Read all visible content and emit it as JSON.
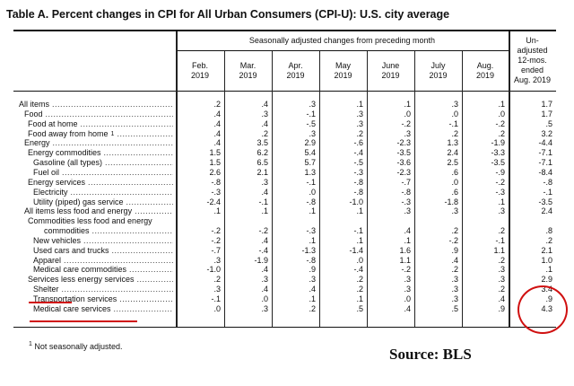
{
  "title": "Table A. Percent changes in CPI for All Urban Consumers (CPI-U): U.S. city average",
  "header": {
    "group_label": "Seasonally adjusted changes from preceding month",
    "months": [
      [
        "Feb.",
        "2019"
      ],
      [
        "Mar.",
        "2019"
      ],
      [
        "Apr.",
        "2019"
      ],
      [
        "May",
        "2019"
      ],
      [
        "June",
        "2019"
      ],
      [
        "July",
        "2019"
      ],
      [
        "Aug.",
        "2019"
      ]
    ],
    "unadjusted": [
      "Un-",
      "adjusted",
      "12-mos.",
      "ended",
      "Aug. 2019"
    ]
  },
  "rows": [
    {
      "label": "All items",
      "indent": 0,
      "values": [
        ".2",
        ".4",
        ".3",
        ".1",
        ".1",
        ".3",
        ".1",
        "1.7"
      ]
    },
    {
      "label": "Food",
      "indent": 1,
      "values": [
        ".4",
        ".3",
        "-.1",
        ".3",
        ".0",
        ".0",
        ".0",
        "1.7"
      ]
    },
    {
      "label": "Food at home",
      "indent": 2,
      "values": [
        ".4",
        ".4",
        "-.5",
        ".3",
        "-.2",
        "-.1",
        "-.2",
        ".5"
      ]
    },
    {
      "label": "Food away from home",
      "footnote": "1",
      "indent": 2,
      "values": [
        ".4",
        ".2",
        ".3",
        ".2",
        ".3",
        ".2",
        ".2",
        "3.2"
      ]
    },
    {
      "label": "Energy",
      "indent": 1,
      "values": [
        ".4",
        "3.5",
        "2.9",
        "-.6",
        "-2.3",
        "1.3",
        "-1.9",
        "-4.4"
      ]
    },
    {
      "label": "Energy commodities",
      "indent": 2,
      "values": [
        "1.5",
        "6.2",
        "5.4",
        "-.4",
        "-3.5",
        "2.4",
        "-3.3",
        "-7.1"
      ]
    },
    {
      "label": "Gasoline (all types)",
      "indent": 3,
      "values": [
        "1.5",
        "6.5",
        "5.7",
        "-.5",
        "-3.6",
        "2.5",
        "-3.5",
        "-7.1"
      ]
    },
    {
      "label": "Fuel oil",
      "indent": 3,
      "values": [
        "2.6",
        "2.1",
        "1.3",
        "-.3",
        "-2.3",
        ".6",
        "-.9",
        "-8.4"
      ]
    },
    {
      "label": "Energy services",
      "indent": 2,
      "values": [
        "-.8",
        ".3",
        "-.1",
        "-.8",
        "-.7",
        ".0",
        "-.2",
        "-.8"
      ]
    },
    {
      "label": "Electricity",
      "indent": 3,
      "values": [
        "-.3",
        ".4",
        ".0",
        "-.8",
        "-.8",
        ".6",
        "-.3",
        "-.1"
      ]
    },
    {
      "label": "Utility (piped) gas service",
      "indent": 3,
      "values": [
        "-2.4",
        "-.1",
        "-.8",
        "-1.0",
        "-.3",
        "-1.8",
        ".1",
        "-3.5"
      ]
    },
    {
      "label": "All items less food and energy",
      "indent": 1,
      "values": [
        ".1",
        ".1",
        ".1",
        ".1",
        ".3",
        ".3",
        ".3",
        "2.4"
      ]
    },
    {
      "label": "Commodities less food and energy",
      "indent": 2,
      "values": []
    },
    {
      "label": "commodities",
      "indent": 4,
      "values": [
        "-.2",
        "-.2",
        "-.3",
        "-.1",
        ".4",
        ".2",
        ".2",
        ".8"
      ]
    },
    {
      "label": "New vehicles",
      "indent": 3,
      "values": [
        "-.2",
        ".4",
        ".1",
        ".1",
        ".1",
        "-.2",
        "-.1",
        ".2"
      ]
    },
    {
      "label": "Used cars and trucks",
      "indent": 3,
      "values": [
        "-.7",
        "-.4",
        "-1.3",
        "-1.4",
        "1.6",
        ".9",
        "1.1",
        "2.1"
      ]
    },
    {
      "label": "Apparel",
      "indent": 3,
      "values": [
        ".3",
        "-1.9",
        "-.8",
        ".0",
        "1.1",
        ".4",
        ".2",
        "1.0"
      ]
    },
    {
      "label": "Medical care commodities",
      "indent": 3,
      "values": [
        "-1.0",
        ".4",
        ".9",
        "-.4",
        "-.2",
        ".2",
        ".3",
        ".1"
      ]
    },
    {
      "label": "Services less energy services",
      "indent": 2,
      "values": [
        ".2",
        ".3",
        ".3",
        ".2",
        ".3",
        ".3",
        ".3",
        "2.9"
      ]
    },
    {
      "label": "Shelter",
      "indent": 3,
      "values": [
        ".3",
        ".4",
        ".4",
        ".2",
        ".3",
        ".3",
        ".2",
        "3.4"
      ]
    },
    {
      "label": "Transportation services",
      "indent": 3,
      "values": [
        "-.1",
        ".0",
        ".1",
        ".1",
        ".0",
        ".3",
        ".4",
        ".9"
      ]
    },
    {
      "label": "Medical care services",
      "indent": 3,
      "values": [
        ".0",
        ".3",
        ".2",
        ".5",
        ".4",
        ".5",
        ".9",
        "4.3"
      ]
    }
  ],
  "footnote": {
    "marker": "1",
    "text": "Not seasonally adjusted."
  },
  "source": "Source:  BLS",
  "colors": {
    "annotation": "#d01010"
  }
}
